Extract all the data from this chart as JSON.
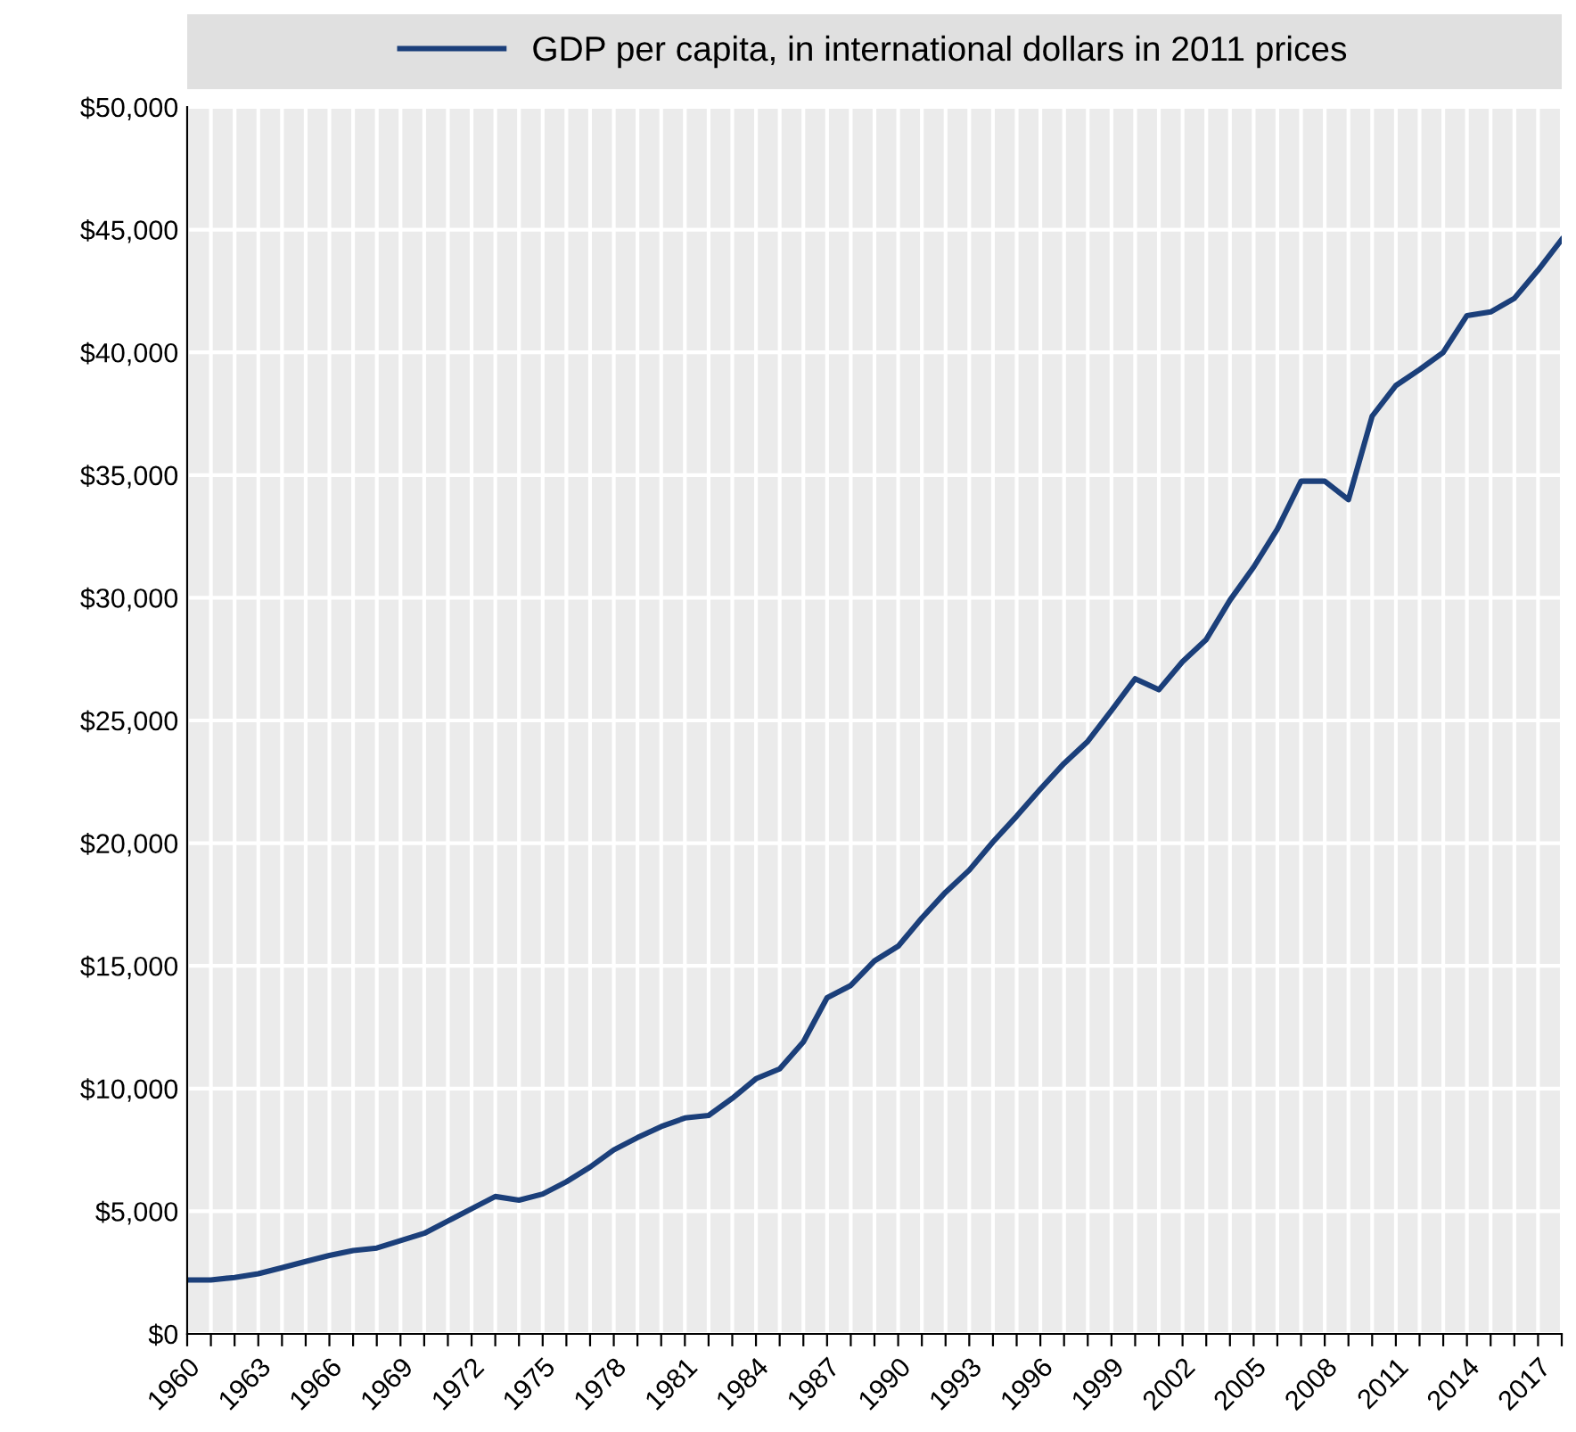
{
  "chart_data": {
    "type": "line",
    "x": [
      1960,
      1961,
      1962,
      1963,
      1964,
      1965,
      1966,
      1967,
      1968,
      1969,
      1970,
      1971,
      1972,
      1973,
      1974,
      1975,
      1976,
      1977,
      1978,
      1979,
      1980,
      1981,
      1982,
      1983,
      1984,
      1985,
      1986,
      1987,
      1988,
      1989,
      1990,
      1991,
      1992,
      1993,
      1994,
      1995,
      1996,
      1997,
      1998,
      1999,
      2000,
      2001,
      2002,
      2003,
      2004,
      2005,
      2006,
      2007,
      2008,
      2009,
      2010,
      2011,
      2012,
      2013,
      2014,
      2015,
      2016,
      2017,
      2018
    ],
    "series": [
      {
        "name": "GDP per capita, in international dollars in 2011 prices",
        "color": "#1b3f7a",
        "values": [
          2200,
          2200,
          2300,
          2450,
          2700,
          2950,
          3200,
          3400,
          3500,
          3800,
          4100,
          4600,
          5100,
          5600,
          5450,
          5700,
          6200,
          6800,
          7500,
          8000,
          8450,
          8800,
          8900,
          9600,
          10400,
          10800,
          11900,
          13700,
          14200,
          15200,
          15800,
          16950,
          18000,
          18900,
          20050,
          21100,
          22200,
          23250,
          24150,
          25400,
          26700,
          26250,
          27400,
          28300,
          29900,
          31250,
          32800,
          34750,
          34750,
          34000,
          37400,
          38650,
          39300,
          40000,
          41500,
          41650,
          42200,
          43350,
          44600
        ]
      }
    ],
    "xlim": [
      1960,
      2018
    ],
    "xticks": [
      {
        "value": 1960,
        "label": "1960"
      },
      {
        "value": 1961,
        "label": null
      },
      {
        "value": 1962,
        "label": null
      },
      {
        "value": 1963,
        "label": "1963"
      },
      {
        "value": 1964,
        "label": null
      },
      {
        "value": 1965,
        "label": null
      },
      {
        "value": 1966,
        "label": "1966"
      },
      {
        "value": 1967,
        "label": null
      },
      {
        "value": 1968,
        "label": null
      },
      {
        "value": 1969,
        "label": "1969"
      },
      {
        "value": 1970,
        "label": null
      },
      {
        "value": 1971,
        "label": null
      },
      {
        "value": 1972,
        "label": "1972"
      },
      {
        "value": 1973,
        "label": null
      },
      {
        "value": 1974,
        "label": null
      },
      {
        "value": 1975,
        "label": "1975"
      },
      {
        "value": 1976,
        "label": null
      },
      {
        "value": 1977,
        "label": null
      },
      {
        "value": 1978,
        "label": "1978"
      },
      {
        "value": 1979,
        "label": null
      },
      {
        "value": 1980,
        "label": null
      },
      {
        "value": 1981,
        "label": "1981"
      },
      {
        "value": 1982,
        "label": null
      },
      {
        "value": 1983,
        "label": null
      },
      {
        "value": 1984,
        "label": "1984"
      },
      {
        "value": 1985,
        "label": null
      },
      {
        "value": 1986,
        "label": null
      },
      {
        "value": 1987,
        "label": "1987"
      },
      {
        "value": 1988,
        "label": null
      },
      {
        "value": 1989,
        "label": null
      },
      {
        "value": 1990,
        "label": "1990"
      },
      {
        "value": 1991,
        "label": null
      },
      {
        "value": 1992,
        "label": null
      },
      {
        "value": 1993,
        "label": "1993"
      },
      {
        "value": 1994,
        "label": null
      },
      {
        "value": 1995,
        "label": null
      },
      {
        "value": 1996,
        "label": "1996"
      },
      {
        "value": 1997,
        "label": null
      },
      {
        "value": 1998,
        "label": null
      },
      {
        "value": 1999,
        "label": "1999"
      },
      {
        "value": 2000,
        "label": null
      },
      {
        "value": 2001,
        "label": null
      },
      {
        "value": 2002,
        "label": "2002"
      },
      {
        "value": 2003,
        "label": null
      },
      {
        "value": 2004,
        "label": null
      },
      {
        "value": 2005,
        "label": "2005"
      },
      {
        "value": 2006,
        "label": null
      },
      {
        "value": 2007,
        "label": null
      },
      {
        "value": 2008,
        "label": "2008"
      },
      {
        "value": 2009,
        "label": null
      },
      {
        "value": 2010,
        "label": null
      },
      {
        "value": 2011,
        "label": "2011"
      },
      {
        "value": 2012,
        "label": null
      },
      {
        "value": 2013,
        "label": null
      },
      {
        "value": 2014,
        "label": "2014"
      },
      {
        "value": 2015,
        "label": null
      },
      {
        "value": 2016,
        "label": null
      },
      {
        "value": 2017,
        "label": "2017"
      },
      {
        "value": 2018,
        "label": null
      }
    ],
    "ylim": [
      0,
      50000
    ],
    "yticks": [
      {
        "value": 0,
        "label": "$0"
      },
      {
        "value": 5000,
        "label": "$5,000"
      },
      {
        "value": 10000,
        "label": "$10,000"
      },
      {
        "value": 15000,
        "label": "$15,000"
      },
      {
        "value": 20000,
        "label": "$20,000"
      },
      {
        "value": 25000,
        "label": "$25,000"
      },
      {
        "value": 30000,
        "label": "$30,000"
      },
      {
        "value": 35000,
        "label": "$35,000"
      },
      {
        "value": 40000,
        "label": "$40,000"
      },
      {
        "value": 45000,
        "label": "$45,000"
      },
      {
        "value": 50000,
        "label": "$50,000"
      }
    ],
    "grid": true,
    "legend": "top",
    "marker": "none",
    "line_style": "solid"
  }
}
